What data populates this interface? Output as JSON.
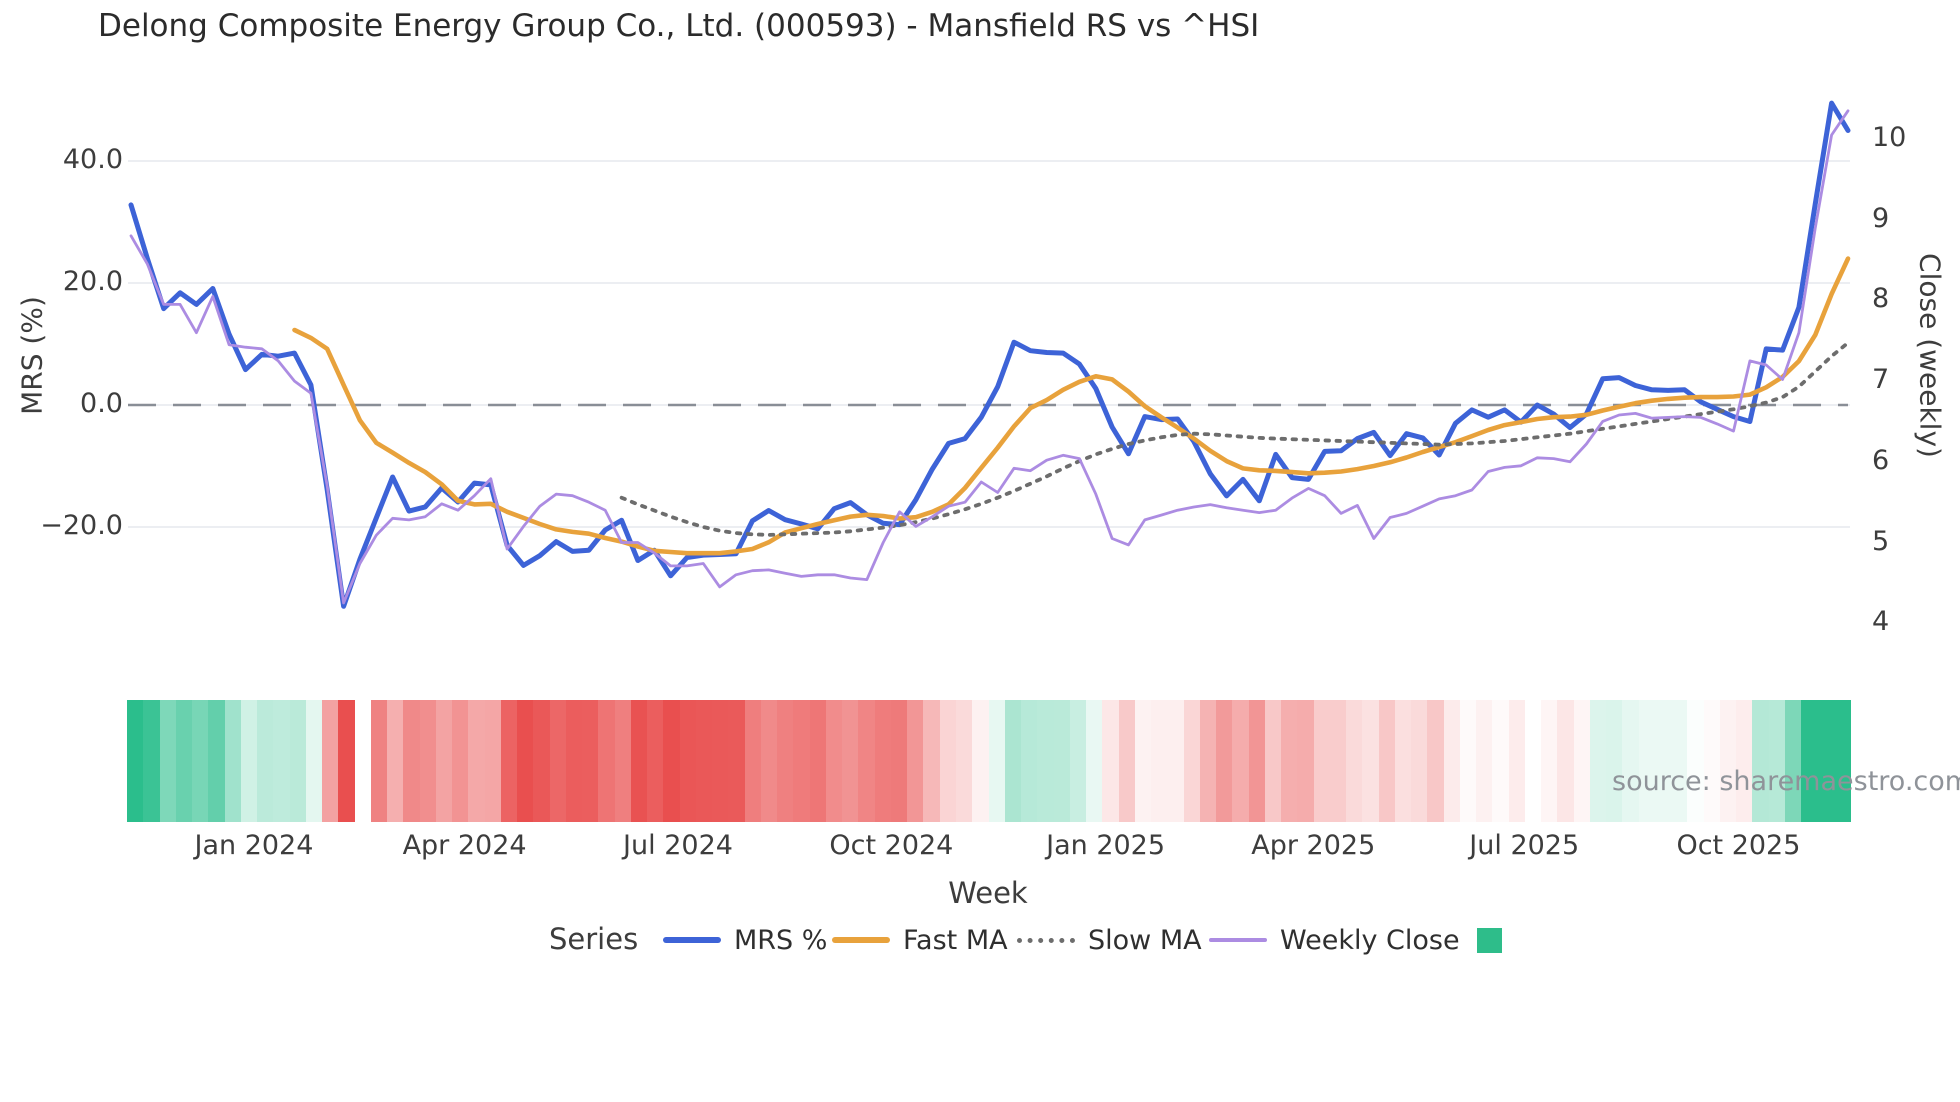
{
  "title": "Delong Composite Energy Group Co., Ltd. (000593) - Mansfield RS vs ^HSI",
  "source_text": "source: sharemaestro.com",
  "axes": {
    "left": {
      "title": "MRS (%)",
      "ticks": [
        {
          "label": "40.0",
          "value": 40
        },
        {
          "label": "20.0",
          "value": 20
        },
        {
          "label": "0.0",
          "value": 0
        },
        {
          "label": "−20.0",
          "value": -20
        }
      ]
    },
    "right": {
      "title": "Close (weekly)",
      "ticks": [
        {
          "label": "10",
          "value": 10
        },
        {
          "label": "9",
          "value": 9
        },
        {
          "label": "8",
          "value": 8
        },
        {
          "label": "7",
          "value": 7
        },
        {
          "label": "6",
          "value": 6
        },
        {
          "label": "5",
          "value": 5
        },
        {
          "label": "4",
          "value": 4
        }
      ]
    },
    "x": {
      "title": "Week",
      "ticks": [
        {
          "label": "Jan 2024",
          "week": 7.52
        },
        {
          "label": "Apr 2024",
          "week": 20.4
        },
        {
          "label": "Jul 2024",
          "week": 33.45
        },
        {
          "label": "Oct 2024",
          "week": 46.5
        },
        {
          "label": "Jan 2025",
          "week": 59.6
        },
        {
          "label": "Apr 2025",
          "week": 72.3
        },
        {
          "label": "Jul 2025",
          "week": 85.2
        },
        {
          "label": "Oct 2025",
          "week": 98.3
        }
      ]
    }
  },
  "legend": {
    "title": "Series",
    "items": [
      {
        "label": "MRS %",
        "swatch": "line",
        "color": "#3d63d7"
      },
      {
        "label": "Fast MA",
        "swatch": "line",
        "color": "#e8a23c"
      },
      {
        "label": "Slow MA",
        "swatch": "dotted",
        "color": "#6d6d6d"
      },
      {
        "label": "Weekly Close",
        "swatch": "thin",
        "color": "#ac8ce2"
      },
      {
        "label": "",
        "swatch": "square",
        "color": "#2ebd8a"
      }
    ]
  },
  "colors": {
    "mrs_line": "#3d63d7",
    "fast_ma": "#e8a23c",
    "slow_ma": "#6d6d6d",
    "weekly_close": "#ac8ce2",
    "zero_line": "#898e96",
    "gridline": "#e6e8ed",
    "heat_positive": "#2bbe8c",
    "heat_negative": "#e94f4f",
    "source_gray": "#8f9399"
  },
  "chart_data": {
    "type": "line",
    "n_weeks": 106,
    "xlabel": "Week",
    "ylabel_left": "MRS (%)",
    "ylabel_right": "Close (weekly)",
    "ylim_left": [
      -42,
      52.5
    ],
    "ylim_right": [
      3.5,
      10.7
    ],
    "zero_line_left": 0,
    "grid": "horizontal-left-ticks",
    "legend_position": "bottom-center",
    "series": [
      {
        "name": "MRS %",
        "axis": "left",
        "color": "#3d63d7",
        "style": "solid",
        "width": 5,
        "values": [
          32.8,
          24.0,
          15.8,
          18.4,
          16.5,
          19.1,
          11.6,
          5.8,
          8.3,
          8.0,
          8.5,
          3.3,
          -13.9,
          -33.0,
          -25.3,
          -18.5,
          -11.8,
          -17.4,
          -16.7,
          -13.6,
          -15.9,
          -12.8,
          -13.1,
          -23.0,
          -26.3,
          -24.7,
          -22.4,
          -24.0,
          -23.8,
          -20.5,
          -18.9,
          -25.5,
          -23.8,
          -28.0,
          -25.0,
          -24.6,
          -24.5,
          -24.4,
          -19.0,
          -17.3,
          -18.8,
          -19.5,
          -20.3,
          -17.0,
          -16.0,
          -18.0,
          -19.4,
          -19.6,
          -15.5,
          -10.5,
          -6.3,
          -5.5,
          -2.0,
          3.0,
          10.3,
          8.9,
          8.6,
          8.5,
          6.7,
          2.7,
          -3.6,
          -8.0,
          -1.9,
          -2.4,
          -2.3,
          -6.0,
          -11.3,
          -14.9,
          -12.2,
          -15.7,
          -8.1,
          -11.9,
          -12.2,
          -7.6,
          -7.5,
          -5.5,
          -4.5,
          -8.3,
          -4.7,
          -5.4,
          -8.2,
          -3.0,
          -0.8,
          -2.0,
          -0.8,
          -2.8,
          0.0,
          -1.5,
          -3.7,
          -1.5,
          4.3,
          4.5,
          3.2,
          2.5,
          2.4,
          2.5,
          0.5,
          -0.7,
          -1.9,
          -2.7,
          9.2,
          9.0,
          16.0,
          33.0,
          49.5,
          45.0
        ]
      },
      {
        "name": "Fast MA",
        "axis": "left",
        "color": "#e8a23c",
        "style": "solid",
        "width": 4.6,
        "values": [
          null,
          null,
          null,
          null,
          null,
          null,
          null,
          null,
          null,
          null,
          12.3,
          11.0,
          9.2,
          3.3,
          -2.5,
          -6.2,
          -7.8,
          -9.5,
          -11.0,
          -13.0,
          -15.7,
          -16.3,
          -16.2,
          -17.5,
          -18.5,
          -19.5,
          -20.4,
          -20.8,
          -21.1,
          -21.8,
          -22.4,
          -23.2,
          -23.9,
          -24.1,
          -24.3,
          -24.3,
          -24.3,
          -24.0,
          -23.6,
          -22.5,
          -20.9,
          -20.2,
          -19.5,
          -18.9,
          -18.3,
          -18.0,
          -18.2,
          -18.6,
          -18.4,
          -17.5,
          -16.3,
          -13.6,
          -10.3,
          -7.0,
          -3.5,
          -0.5,
          0.8,
          2.5,
          3.8,
          4.7,
          4.2,
          2.2,
          -0.2,
          -2.0,
          -3.7,
          -5.5,
          -7.5,
          -9.2,
          -10.4,
          -10.7,
          -10.8,
          -11.0,
          -11.2,
          -11.1,
          -10.9,
          -10.5,
          -10.0,
          -9.4,
          -8.6,
          -7.7,
          -6.9,
          -6.1,
          -5.1,
          -4.1,
          -3.3,
          -2.8,
          -2.3,
          -2.0,
          -1.9,
          -1.6,
          -0.9,
          -0.3,
          0.3,
          0.7,
          1.0,
          1.2,
          1.3,
          1.3,
          1.4,
          1.7,
          2.9,
          4.6,
          7.2,
          11.5,
          18.2,
          24.0
        ]
      },
      {
        "name": "Slow MA",
        "axis": "left",
        "color": "#6d6d6d",
        "style": "dotted",
        "width": 3.8,
        "values": [
          null,
          null,
          null,
          null,
          null,
          null,
          null,
          null,
          null,
          null,
          null,
          null,
          null,
          null,
          null,
          null,
          null,
          null,
          null,
          null,
          null,
          null,
          null,
          null,
          null,
          null,
          null,
          null,
          null,
          null,
          -15.2,
          -16.3,
          -17.3,
          -18.3,
          -19.2,
          -20.0,
          -20.6,
          -21.0,
          -21.2,
          -21.3,
          -21.2,
          -21.1,
          -21.0,
          -20.9,
          -20.7,
          -20.4,
          -20.1,
          -19.7,
          -19.2,
          -18.6,
          -17.9,
          -17.1,
          -16.2,
          -15.2,
          -14.1,
          -12.9,
          -11.7,
          -10.4,
          -9.2,
          -8.1,
          -7.2,
          -6.4,
          -5.8,
          -5.3,
          -4.9,
          -4.7,
          -4.8,
          -5.0,
          -5.2,
          -5.4,
          -5.5,
          -5.6,
          -5.7,
          -5.8,
          -5.9,
          -6.0,
          -6.1,
          -6.2,
          -6.3,
          -6.4,
          -6.5,
          -6.4,
          -6.3,
          -6.1,
          -5.9,
          -5.6,
          -5.3,
          -5.0,
          -4.7,
          -4.3,
          -3.9,
          -3.5,
          -3.1,
          -2.7,
          -2.3,
          -1.9,
          -1.5,
          -1.1,
          -0.7,
          -0.2,
          0.4,
          1.3,
          3.0,
          5.5,
          8.0,
          10.2
        ]
      },
      {
        "name": "Weekly Close",
        "axis": "right",
        "color": "#ac8ce2",
        "style": "solid",
        "width": 2.8,
        "values": [
          8.8,
          8.45,
          7.95,
          7.95,
          7.6,
          8.05,
          7.45,
          7.42,
          7.4,
          7.25,
          7.0,
          6.85,
          5.7,
          4.25,
          4.74,
          5.09,
          5.3,
          5.28,
          5.32,
          5.48,
          5.4,
          5.58,
          5.79,
          4.92,
          5.2,
          5.45,
          5.6,
          5.58,
          5.5,
          5.4,
          5.0,
          5.0,
          4.87,
          4.71,
          4.71,
          4.74,
          4.45,
          4.6,
          4.65,
          4.66,
          4.62,
          4.58,
          4.6,
          4.6,
          4.56,
          4.54,
          5.0,
          5.38,
          5.2,
          5.32,
          5.45,
          5.5,
          5.75,
          5.62,
          5.92,
          5.89,
          6.02,
          6.08,
          6.04,
          5.6,
          5.05,
          4.97,
          5.28,
          5.34,
          5.4,
          5.44,
          5.47,
          5.43,
          5.4,
          5.37,
          5.4,
          5.55,
          5.67,
          5.58,
          5.36,
          5.46,
          5.05,
          5.31,
          5.36,
          5.45,
          5.54,
          5.58,
          5.65,
          5.88,
          5.93,
          5.95,
          6.05,
          6.04,
          6.0,
          6.22,
          6.5,
          6.58,
          6.6,
          6.54,
          6.55,
          6.56,
          6.55,
          6.47,
          6.38,
          7.25,
          7.2,
          7.02,
          7.6,
          8.9,
          10.05,
          10.35
        ]
      }
    ],
    "heat_strip": {
      "description": "weekly color band derived from MRS % sign and magnitude",
      "from_series": "MRS %",
      "positive_color": "#2bbe8c",
      "negative_color": "#e94f4f",
      "max_abs": 26,
      "gap_weeks": [
        14
      ]
    }
  }
}
